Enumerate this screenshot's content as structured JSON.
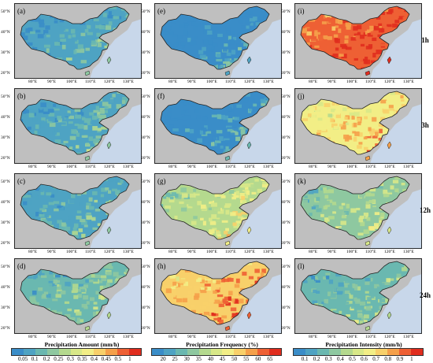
{
  "panels": [
    {
      "label": "(a)",
      "column": "amount",
      "row": "1h",
      "level": 0.15
    },
    {
      "label": "(b)",
      "column": "amount",
      "row": "3h",
      "level": 0.2
    },
    {
      "label": "(c)",
      "column": "amount",
      "row": "12h",
      "level": 0.22
    },
    {
      "label": "(d)",
      "column": "amount",
      "row": "24h",
      "level": 0.3
    },
    {
      "label": "(e)",
      "column": "frequency",
      "row": "1h",
      "level": 0.02
    },
    {
      "label": "(f)",
      "column": "frequency",
      "row": "3h",
      "level": 0.08
    },
    {
      "label": "(g)",
      "column": "frequency",
      "row": "12h",
      "level": 0.5
    },
    {
      "label": "(h)",
      "column": "frequency",
      "row": "24h",
      "level": 0.8
    },
    {
      "label": "(i)",
      "column": "intensity",
      "row": "1h",
      "level": 0.95
    },
    {
      "label": "(j)",
      "column": "intensity",
      "row": "3h",
      "level": 0.7
    },
    {
      "label": "(k)",
      "column": "intensity",
      "row": "12h",
      "level": 0.4
    },
    {
      "label": "(l)",
      "column": "intensity",
      "row": "24h",
      "level": 0.3
    }
  ],
  "row_labels": [
    "1h",
    "3h",
    "12h",
    "24h"
  ],
  "latitude_labels": [
    "50°N",
    "40°N",
    "30°N",
    "20°N"
  ],
  "longitude_labels": [
    "80°E",
    "90°E",
    "100°E",
    "110°E",
    "120°E",
    "130°E"
  ],
  "colorbars": [
    {
      "title": "Precipitation Amount (mm/h)",
      "ticks": [
        "0.05",
        "0.1",
        "0.2",
        "0.25",
        "0.3",
        "0.35",
        "0.4",
        "0.45",
        "0.5",
        "1"
      ]
    },
    {
      "title": "Precipitation Frequency (%)",
      "ticks": [
        "20",
        "25",
        "30",
        "35",
        "40",
        "45",
        "50",
        "55",
        "60",
        "65"
      ]
    },
    {
      "title": "Precipitation Intensity (mm/h)",
      "ticks": [
        "0.1",
        "0.2",
        "0.3",
        "0.4",
        "0.5",
        "0.6",
        "0.7",
        "0.8",
        "0.9",
        "1"
      ]
    }
  ],
  "colors": {
    "ocean": "#c8d7ea",
    "land_outside": "#bfbfbf",
    "scale": [
      "#3a8dc8",
      "#4ea3c3",
      "#6ab8b0",
      "#8ec8a0",
      "#b4d98e",
      "#d8e888",
      "#f2ee86",
      "#f8d06a",
      "#f5a04a",
      "#ee6034",
      "#e02d1e"
    ]
  }
}
